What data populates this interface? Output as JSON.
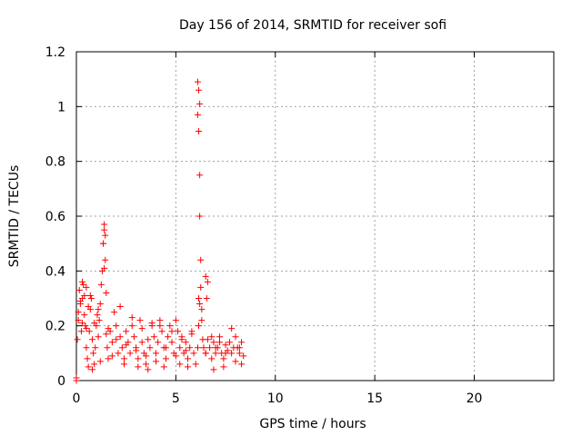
{
  "chart_data": {
    "type": "scatter",
    "title": "Day 156 of 2014, SRMTID for receiver sofi",
    "xlabel": "GPS time / hours",
    "ylabel": "SRMTID / TECUs",
    "xlim": [
      0,
      24
    ],
    "ylim": [
      0,
      1.2
    ],
    "xticks": [
      0,
      5,
      10,
      15,
      20
    ],
    "xtick_labels": [
      "0",
      "5",
      "10",
      "15",
      "20"
    ],
    "yticks": [
      0,
      0.2,
      0.4,
      0.6,
      0.8,
      1.0,
      1.2
    ],
    "ytick_labels": [
      "0",
      "0.2",
      "0.4",
      "0.6",
      "0.8",
      "1",
      "1.2"
    ],
    "grid": true,
    "marker": "+",
    "color": "#ff0000",
    "x": [
      0.0,
      0.0,
      0.05,
      0.1,
      0.15,
      0.2,
      0.25,
      0.3,
      0.35,
      0.4,
      0.45,
      0.5,
      0.55,
      0.6,
      0.65,
      0.7,
      0.75,
      0.8,
      0.85,
      0.9,
      0.95,
      1.0,
      1.05,
      1.1,
      1.15,
      1.2,
      1.25,
      1.3,
      1.35,
      1.4,
      1.45,
      1.5,
      1.55,
      1.6,
      1.7,
      1.8,
      1.9,
      2.0,
      2.1,
      2.2,
      2.3,
      2.4,
      2.5,
      2.6,
      2.7,
      2.8,
      2.9,
      3.0,
      3.1,
      3.2,
      3.3,
      3.4,
      3.5,
      3.6,
      3.7,
      3.8,
      3.9,
      4.0,
      4.1,
      4.2,
      4.3,
      4.4,
      4.5,
      4.6,
      4.7,
      4.8,
      4.9,
      5.0,
      5.1,
      5.2,
      5.3,
      5.4,
      5.5,
      5.6,
      5.7,
      5.8,
      5.9,
      6.0,
      6.1,
      6.15,
      6.2,
      6.25,
      6.3,
      6.35,
      6.4,
      6.5,
      6.6,
      6.7,
      6.8,
      6.9,
      7.0,
      7.1,
      7.2,
      7.3,
      7.4,
      7.5,
      7.6,
      7.7,
      7.8,
      7.9,
      8.0,
      8.1,
      8.2,
      8.3,
      8.4,
      1.35,
      1.4,
      1.45,
      1.4,
      0.3,
      0.5,
      0.7,
      0.2,
      0.4,
      0.6,
      0.9,
      1.1,
      6.1,
      6.15,
      6.2,
      6.1,
      6.15,
      6.2,
      6.2,
      6.25,
      6.15,
      6.3,
      6.5,
      6.6,
      6.55,
      0.1,
      0.3,
      0.5,
      1.5,
      1.6,
      2.0,
      2.5,
      3.0,
      3.5,
      4.0,
      4.5,
      5.0,
      5.5,
      6.5,
      7.0,
      7.5,
      8.0,
      2.2,
      2.8,
      3.3,
      3.8,
      4.2,
      4.8,
      5.3,
      5.8,
      6.8,
      7.2,
      7.8,
      8.2,
      0.8,
      1.2,
      1.8,
      2.4,
      3.1,
      3.6,
      4.4,
      5.2,
      5.6,
      6.9,
      7.4,
      8.3
    ],
    "y": [
      0.0,
      0.01,
      0.15,
      0.22,
      0.33,
      0.28,
      0.18,
      0.3,
      0.35,
      0.24,
      0.2,
      0.12,
      0.08,
      0.05,
      0.18,
      0.26,
      0.3,
      0.15,
      0.1,
      0.06,
      0.12,
      0.2,
      0.24,
      0.16,
      0.22,
      0.28,
      0.35,
      0.4,
      0.5,
      0.55,
      0.44,
      0.32,
      0.12,
      0.08,
      0.18,
      0.14,
      0.25,
      0.2,
      0.1,
      0.16,
      0.12,
      0.08,
      0.18,
      0.14,
      0.1,
      0.2,
      0.16,
      0.12,
      0.08,
      0.22,
      0.14,
      0.1,
      0.06,
      0.15,
      0.12,
      0.2,
      0.16,
      0.1,
      0.14,
      0.22,
      0.18,
      0.12,
      0.08,
      0.16,
      0.2,
      0.14,
      0.1,
      0.22,
      0.18,
      0.12,
      0.16,
      0.1,
      0.14,
      0.08,
      0.12,
      0.18,
      0.1,
      0.06,
      0.12,
      0.2,
      0.28,
      0.34,
      0.22,
      0.15,
      0.12,
      0.1,
      0.15,
      0.12,
      0.08,
      0.14,
      0.1,
      0.12,
      0.16,
      0.1,
      0.08,
      0.13,
      0.11,
      0.14,
      0.1,
      0.12,
      0.16,
      0.12,
      0.1,
      0.14,
      0.09,
      0.5,
      0.57,
      0.53,
      0.41,
      0.36,
      0.34,
      0.31,
      0.29,
      0.31,
      0.27,
      0.21,
      0.26,
      1.09,
      1.06,
      1.01,
      0.97,
      0.91,
      0.75,
      0.6,
      0.44,
      0.3,
      0.26,
      0.38,
      0.36,
      0.3,
      0.25,
      0.21,
      0.19,
      0.17,
      0.19,
      0.15,
      0.13,
      0.11,
      0.09,
      0.07,
      0.12,
      0.09,
      0.11,
      0.1,
      0.12,
      0.1,
      0.07,
      0.27,
      0.23,
      0.19,
      0.21,
      0.2,
      0.18,
      0.15,
      0.17,
      0.16,
      0.14,
      0.19,
      0.12,
      0.04,
      0.07,
      0.09,
      0.06,
      0.05,
      0.04,
      0.05,
      0.06,
      0.05,
      0.04,
      0.05,
      0.06
    ]
  }
}
